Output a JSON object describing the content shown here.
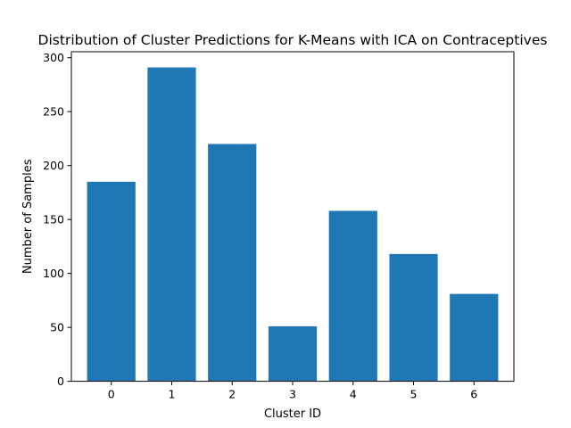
{
  "chart_data": {
    "type": "bar",
    "title": "Distribution of Cluster Predictions for K-Means with ICA on Contraceptives",
    "xlabel": "Cluster ID",
    "ylabel": "Number of Samples",
    "categories": [
      "0",
      "1",
      "2",
      "3",
      "4",
      "5",
      "6"
    ],
    "values": [
      185,
      291,
      220,
      51,
      158,
      118,
      81
    ],
    "ylim": [
      0,
      305.55
    ],
    "yticks": [
      0,
      50,
      100,
      150,
      200,
      250,
      300
    ],
    "bar_color": "#1f77b4",
    "grid": false,
    "legend": "none"
  }
}
